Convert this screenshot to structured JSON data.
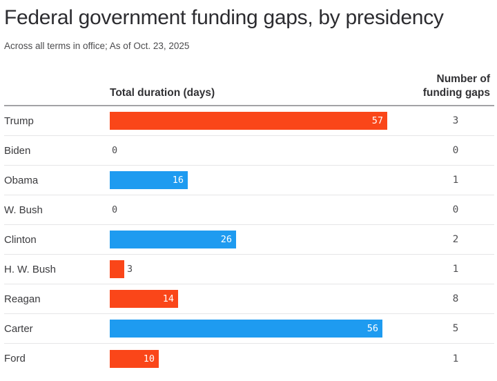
{
  "title": "Federal government funding gaps, by presidency",
  "subtitle": "Across all terms in office; As of Oct. 23, 2025",
  "columns": {
    "president_label": "",
    "duration_label": "Total duration (days)",
    "gaps_label": "Number of funding gaps"
  },
  "colors": {
    "bar_orange": "#fa4619",
    "bar_blue": "#1e9bf0",
    "header_rule": "#a2a2a5",
    "row_divider": "#e5e5e7",
    "bar_label_inside": "#ffffff",
    "bar_label_outside": "#4c4c4f"
  },
  "chart_data": {
    "type": "bar",
    "orientation": "horizontal",
    "title": "Federal government funding gaps, by presidency",
    "subtitle": "Across all terms in office; As of Oct. 23, 2025",
    "xlabel": "Total duration (days)",
    "secondary_column": "Number of funding gaps",
    "xlim": [
      0,
      57
    ],
    "grid": false,
    "legend": "none",
    "categories": [
      "Trump",
      "Biden",
      "Obama",
      "W. Bush",
      "Clinton",
      "H. W. Bush",
      "Reagan",
      "Carter",
      "Ford"
    ],
    "series": [
      {
        "name": "Total duration (days)",
        "values": [
          57,
          0,
          16,
          0,
          26,
          3,
          14,
          56,
          10
        ]
      },
      {
        "name": "Number of funding gaps",
        "values": [
          3,
          0,
          1,
          0,
          2,
          1,
          8,
          5,
          1
        ]
      }
    ],
    "rows": [
      {
        "label": "Trump",
        "duration_days": 57,
        "duration_display": "57",
        "funding_gaps": "3",
        "bar_color": "#fa4619"
      },
      {
        "label": "Biden",
        "duration_days": 0,
        "duration_display": "0",
        "funding_gaps": "0",
        "bar_color": null
      },
      {
        "label": "Obama",
        "duration_days": 16,
        "duration_display": "16",
        "funding_gaps": "1",
        "bar_color": "#1e9bf0"
      },
      {
        "label": "W. Bush",
        "duration_days": 0,
        "duration_display": "0",
        "funding_gaps": "0",
        "bar_color": null
      },
      {
        "label": "Clinton",
        "duration_days": 26,
        "duration_display": "26",
        "funding_gaps": "2",
        "bar_color": "#1e9bf0"
      },
      {
        "label": "H. W. Bush",
        "duration_days": 3,
        "duration_display": "3",
        "funding_gaps": "1",
        "bar_color": "#fa4619"
      },
      {
        "label": "Reagan",
        "duration_days": 14,
        "duration_display": "14",
        "funding_gaps": "8",
        "bar_color": "#fa4619"
      },
      {
        "label": "Carter",
        "duration_days": 56,
        "duration_display": "56",
        "funding_gaps": "5",
        "bar_color": "#1e9bf0"
      },
      {
        "label": "Ford",
        "duration_days": 10,
        "duration_display": "10",
        "funding_gaps": "1",
        "bar_color": "#fa4619"
      }
    ]
  }
}
